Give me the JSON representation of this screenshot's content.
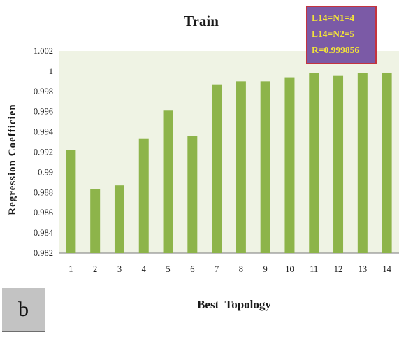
{
  "panel_tag": "b",
  "annotation": {
    "lines": [
      "L14=N1=4",
      "L14=N2=5",
      "R=0.999856"
    ]
  },
  "colors": {
    "bar": "#8db44a",
    "plot_bg": "#eff3e4",
    "annotation_bg": "#7b5aa6",
    "annotation_border": "#c4343f",
    "annotation_text": "#f2e33a"
  },
  "chart_data": {
    "type": "bar",
    "title": "Train",
    "xlabel": "Best  Topology",
    "ylabel": "Regression  Coefficien",
    "categories": [
      "1",
      "2",
      "3",
      "4",
      "5",
      "6",
      "7",
      "8",
      "9",
      "10",
      "11",
      "12",
      "13",
      "14"
    ],
    "series": [
      {
        "values": [
          0.9922,
          0.9883,
          0.9887,
          0.9933,
          0.9961,
          0.9936,
          0.9987,
          0.999,
          0.999,
          0.9994,
          0.99985,
          0.9996,
          0.9998,
          0.999856
        ]
      }
    ],
    "ylim": [
      0.982,
      1.002
    ],
    "yticks": [
      "0.982",
      "0.984",
      "0.986",
      "0.988",
      "0.99",
      "0.992",
      "0.994",
      "0.996",
      "0.998",
      "1",
      "1.002"
    ],
    "grid": false,
    "legend": "none"
  }
}
